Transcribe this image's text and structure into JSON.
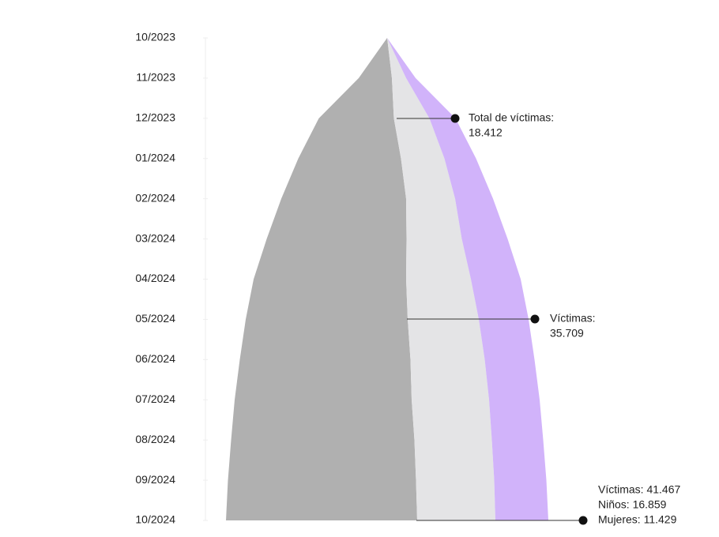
{
  "chart_data": {
    "type": "streamgraph",
    "categories": [
      "10/2023",
      "11/2023",
      "12/2023",
      "01/2024",
      "02/2024",
      "03/2024",
      "04/2024",
      "05/2024",
      "06/2024",
      "07/2024",
      "08/2024",
      "09/2024",
      "10/2024"
    ],
    "series": [
      {
        "color": "#b0b0b0",
        "values": [
          0,
          4200,
          9500,
          13000,
          15800,
          17700,
          19300,
          20500,
          21600,
          22400,
          23200,
          23800,
          24200
        ]
      },
      {
        "color": "#e4e4e6",
        "values": [
          0,
          1800,
          4500,
          5500,
          6200,
          7000,
          8200,
          9000,
          9400,
          9800,
          9800,
          9900,
          9900
        ]
      },
      {
        "color": "#d1b3fa",
        "values": [
          0,
          1200,
          3300,
          4000,
          4800,
          5800,
          6300,
          6300,
          6300,
          6400,
          6500,
          6600,
          6700
        ]
      }
    ],
    "xlim": [
      -30000,
      30000
    ],
    "annotations": [
      {
        "lines": [
          "Total de víctimas:",
          "18.412"
        ]
      },
      {
        "lines": [
          "Víctimas:",
          "35.709"
        ]
      },
      {
        "lines": [
          "Víctimas: 41.467",
          "Niños: 16.859",
          "Mujeres: 11.429"
        ]
      }
    ]
  }
}
